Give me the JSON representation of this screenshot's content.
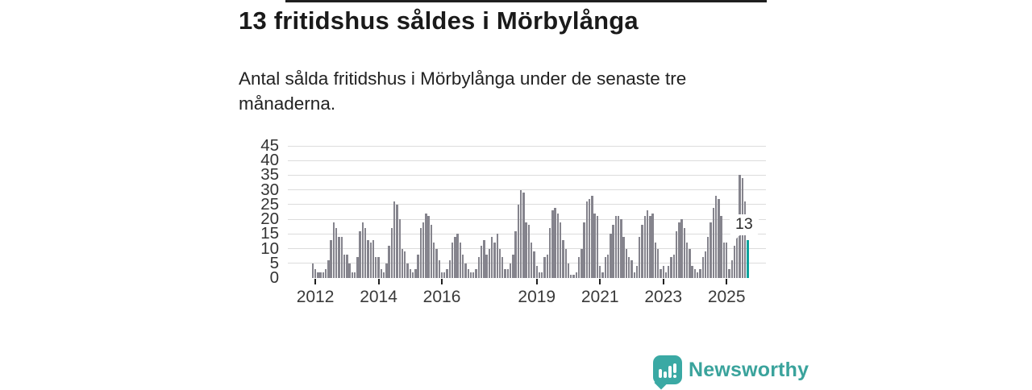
{
  "header": {
    "title": "13 fritidshus såldes i Mörbylånga",
    "subtitle": "Antal sålda fritidshus i Mörbylånga under de senaste tre månaderna."
  },
  "chart_data": {
    "type": "bar",
    "title": "13 fritidshus såldes i Mörbylånga",
    "xlabel": "",
    "ylabel": "Antal sålda fritidshus",
    "x_start": "2011-12",
    "x_frequency": "monthly",
    "ylim": [
      0,
      45
    ],
    "y_ticks": [
      0,
      5,
      10,
      15,
      20,
      25,
      30,
      35,
      40,
      45
    ],
    "grid": "horizontal",
    "legend": "none",
    "bar_color": "#85848d",
    "highlight_color": "#0ba39c",
    "annotation": {
      "text": "13",
      "month_index": 165
    },
    "x_ticks": [
      {
        "label": "2012",
        "month_index": 1
      },
      {
        "label": "2014",
        "month_index": 25
      },
      {
        "label": "2016",
        "month_index": 49
      },
      {
        "label": "2019",
        "month_index": 85
      },
      {
        "label": "2021",
        "month_index": 109
      },
      {
        "label": "2023",
        "month_index": 133
      },
      {
        "label": "2025",
        "month_index": 157
      }
    ],
    "series": [
      {
        "name": "Antal sålda fritidshus i Mörbylånga",
        "values": [
          5,
          3,
          2,
          2,
          2,
          3,
          6,
          13,
          19,
          17,
          14,
          14,
          8,
          8,
          5,
          2,
          2,
          7,
          16,
          19,
          17,
          13,
          12,
          13,
          7,
          7,
          3,
          2,
          5,
          11,
          17,
          26,
          25,
          20,
          10,
          9,
          5,
          3,
          2,
          3,
          8,
          17,
          19,
          22,
          21,
          18,
          12,
          10,
          6,
          2,
          2,
          3,
          6,
          12,
          14,
          15,
          12,
          8,
          5,
          3,
          2,
          2,
          3,
          7,
          11,
          13,
          8,
          10,
          14,
          12,
          15,
          10,
          7,
          3,
          3,
          5,
          8,
          16,
          25,
          30,
          29,
          19,
          18,
          12,
          9,
          4,
          2,
          2,
          7,
          8,
          17,
          23,
          24,
          22,
          19,
          13,
          10,
          5,
          1,
          1,
          2,
          7,
          10,
          19,
          26,
          27,
          28,
          22,
          21,
          4,
          2,
          7,
          8,
          15,
          18,
          21,
          21,
          20,
          14,
          10,
          7,
          6,
          2,
          4,
          14,
          18,
          21,
          23,
          21,
          22,
          12,
          10,
          3,
          4,
          2,
          4,
          7,
          8,
          16,
          19,
          20,
          17,
          12,
          10,
          4,
          3,
          2,
          3,
          7,
          9,
          14,
          19,
          24,
          28,
          27,
          21,
          12,
          12,
          3,
          6,
          11,
          21,
          35,
          34,
          26,
          13
        ]
      }
    ]
  },
  "branding": {
    "name": "Newsworthy",
    "color": "#3aa39c",
    "icon": "newsworthy-speech-bubble-bar-chart"
  }
}
